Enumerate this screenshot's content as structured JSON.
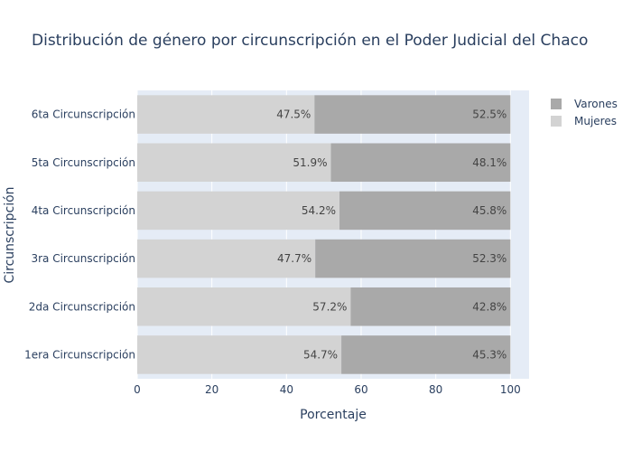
{
  "chart_data": {
    "type": "bar",
    "orientation": "horizontal",
    "stacked": true,
    "title": "Distribución de género por circunscripción en el Poder Judicial del Chaco",
    "xlabel": "Porcentaje",
    "ylabel": "Circunscripción",
    "xlim": [
      0,
      105
    ],
    "xticks": [
      "0",
      "20",
      "40",
      "60",
      "80",
      "100"
    ],
    "grid": true,
    "legend_position": "top-right",
    "categories": [
      "1era Circunscripción",
      "2da Circunscripción",
      "3ra Circunscripción",
      "4ta Circunscripción",
      "5ta Circunscripción",
      "6ta Circunscripción"
    ],
    "series": [
      {
        "name": "Mujeres",
        "color": "#d3d3d3",
        "values": [
          54.7,
          57.2,
          47.7,
          54.2,
          51.9,
          47.5
        ],
        "labels": [
          "54.7%",
          "57.2%",
          "47.7%",
          "54.2%",
          "51.9%",
          "47.5%"
        ]
      },
      {
        "name": "Varones",
        "color": "#a9a9a9",
        "values": [
          45.3,
          42.8,
          52.3,
          45.8,
          48.1,
          52.5
        ],
        "labels": [
          "45.3%",
          "42.8%",
          "52.3%",
          "45.8%",
          "48.1%",
          "52.5%"
        ]
      }
    ],
    "legend_order": [
      "Varones",
      "Mujeres"
    ],
    "plot_background": "#e5ecf6"
  }
}
